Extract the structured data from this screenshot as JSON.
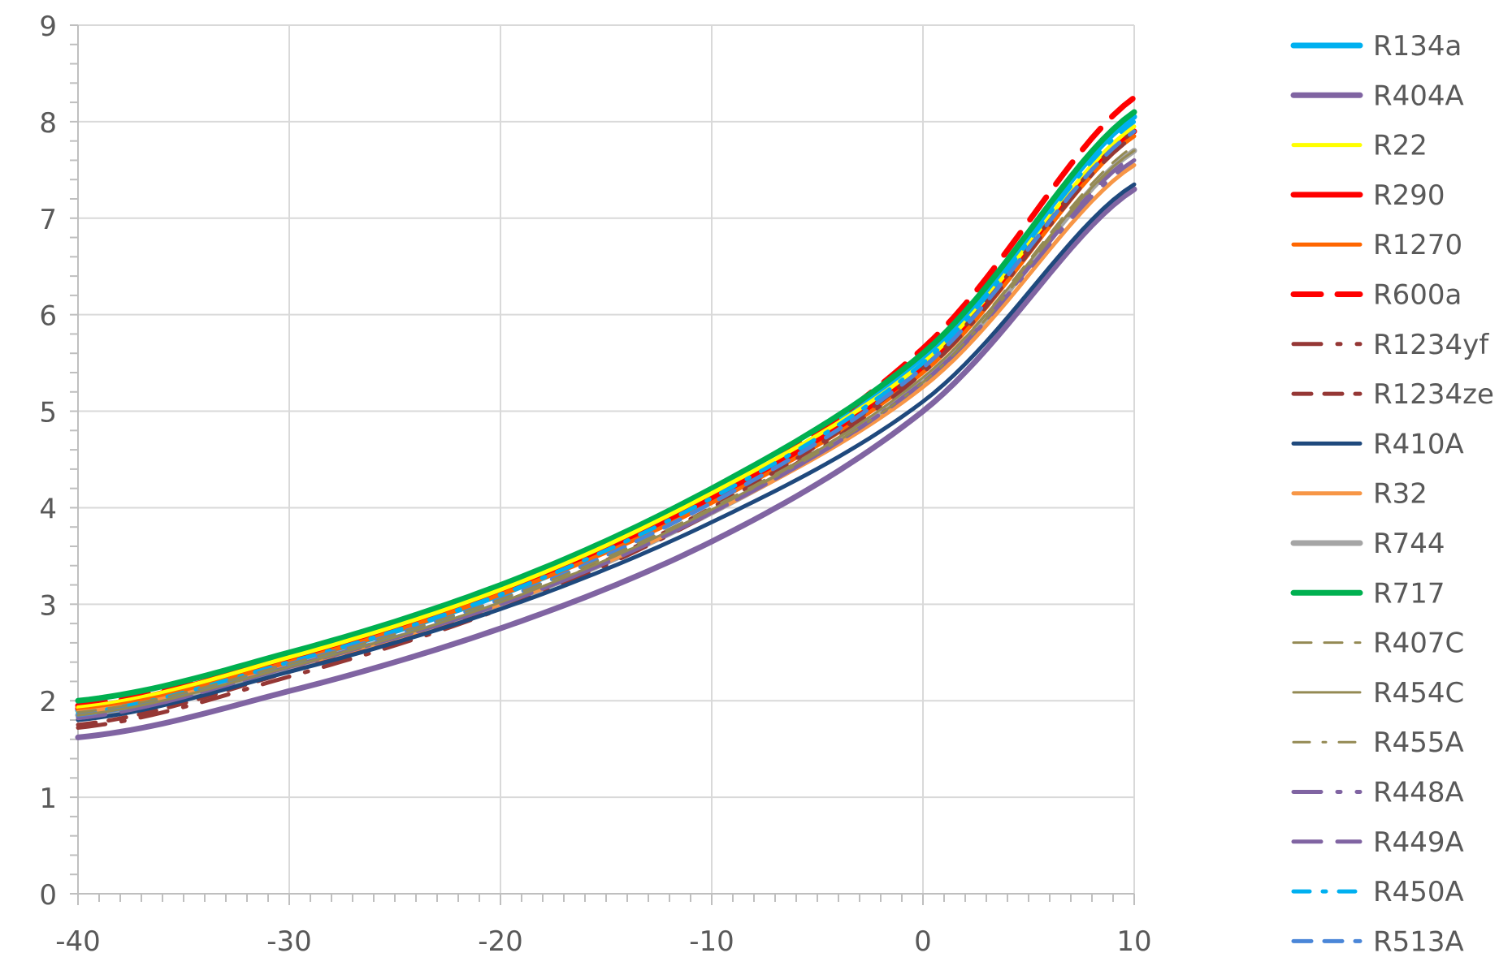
{
  "chart_data": {
    "type": "line",
    "title": "",
    "xlabel": "",
    "ylabel": "",
    "xlim": [
      -40,
      10
    ],
    "ylim": [
      0,
      9
    ],
    "x_ticks": [
      -40,
      -30,
      -20,
      -10,
      0,
      10
    ],
    "y_ticks": [
      0,
      1,
      2,
      3,
      4,
      5,
      6,
      7,
      8,
      9
    ],
    "grid": true,
    "legend_position": "right",
    "x": [
      -40,
      -30,
      -20,
      -10,
      0,
      10
    ],
    "series": [
      {
        "name": "R134a",
        "color": "#00B0F0",
        "style": "solid",
        "width": "thick",
        "values": [
          1.9,
          2.4,
          3.1,
          4.1,
          5.55,
          8.05
        ]
      },
      {
        "name": "R404A",
        "color": "#8064A2",
        "style": "solid",
        "width": "thick",
        "values": [
          1.62,
          2.1,
          2.75,
          3.65,
          5.0,
          7.3
        ]
      },
      {
        "name": "R22",
        "color": "#FFFF00",
        "style": "solid",
        "width": "medium",
        "values": [
          1.93,
          2.45,
          3.15,
          4.15,
          5.5,
          7.95
        ]
      },
      {
        "name": "R290",
        "color": "#FF0000",
        "style": "solid",
        "width": "thick",
        "values": [
          1.92,
          2.45,
          3.12,
          4.1,
          5.45,
          7.9
        ]
      },
      {
        "name": "R1270",
        "color": "#FF6600",
        "style": "solid",
        "width": "medium",
        "values": [
          1.9,
          2.4,
          3.1,
          4.05,
          5.4,
          7.85
        ]
      },
      {
        "name": "R600a",
        "color": "#FF0000",
        "style": "long-dash",
        "width": "thick",
        "values": [
          1.95,
          2.45,
          3.15,
          4.1,
          5.65,
          8.25
        ]
      },
      {
        "name": "R1234yf",
        "color": "#953735",
        "style": "long-dash-dot",
        "width": "medium",
        "values": [
          1.72,
          2.25,
          2.95,
          3.95,
          5.4,
          7.85
        ]
      },
      {
        "name": "R1234ze",
        "color": "#953735",
        "style": "dash",
        "width": "medium",
        "values": [
          1.75,
          2.3,
          3.0,
          4.0,
          5.45,
          7.9
        ]
      },
      {
        "name": "R410A",
        "color": "#1F497D",
        "style": "solid",
        "width": "medium",
        "values": [
          1.8,
          2.3,
          2.95,
          3.85,
          5.1,
          7.35
        ]
      },
      {
        "name": "R32",
        "color": "#F79646",
        "style": "solid",
        "width": "medium",
        "values": [
          1.88,
          2.35,
          3.0,
          3.95,
          5.25,
          7.55
        ]
      },
      {
        "name": "R744",
        "color": "#A5A5A5",
        "style": "solid",
        "width": "thick",
        "values": [
          1.85,
          2.35,
          3.0,
          3.95,
          5.3,
          7.7
        ]
      },
      {
        "name": "R717",
        "color": "#00B050",
        "style": "solid",
        "width": "thick",
        "values": [
          2.0,
          2.5,
          3.2,
          4.2,
          5.6,
          8.1
        ]
      },
      {
        "name": "R407C",
        "color": "#948A54",
        "style": "dash",
        "width": "thin",
        "values": [
          1.88,
          2.38,
          3.05,
          4.0,
          5.35,
          7.75
        ]
      },
      {
        "name": "R454C",
        "color": "#948A54",
        "style": "solid",
        "width": "thin",
        "values": [
          1.85,
          2.35,
          3.02,
          3.98,
          5.35,
          7.7
        ]
      },
      {
        "name": "R455A",
        "color": "#948A54",
        "style": "dash-dot",
        "width": "thin",
        "values": [
          1.85,
          2.35,
          3.02,
          3.98,
          5.3,
          7.7
        ]
      },
      {
        "name": "R448A",
        "color": "#8064A2",
        "style": "long-dash-dot",
        "width": "medium",
        "values": [
          1.82,
          2.35,
          3.0,
          3.95,
          5.3,
          7.6
        ]
      },
      {
        "name": "R449A",
        "color": "#8064A2",
        "style": "long-dash",
        "width": "medium",
        "values": [
          1.82,
          2.35,
          3.0,
          3.95,
          5.3,
          7.65
        ]
      },
      {
        "name": "R450A",
        "color": "#00B0F0",
        "style": "dash-dot",
        "width": "medium",
        "values": [
          1.87,
          2.4,
          3.1,
          4.1,
          5.5,
          8.0
        ]
      },
      {
        "name": "R513A",
        "color": "#4A86D8",
        "style": "dash",
        "width": "medium",
        "values": [
          1.85,
          2.38,
          3.05,
          4.05,
          5.45,
          7.9
        ]
      }
    ]
  }
}
